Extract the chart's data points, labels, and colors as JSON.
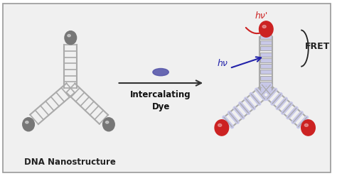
{
  "bg_color": "#f0f0f0",
  "border_color": "#999999",
  "ladder_color": "#aaaaaa",
  "ladder_filled_color": "#c8c8e8",
  "dye_oval_color": "#5555aa",
  "gray_ball_color": "#777777",
  "red_ball_color": "#cc2222",
  "arrow_color": "#333333",
  "hv_color": "#2222aa",
  "hvp_color": "#cc2222",
  "fret_color": "#222222",
  "label_dna": "DNA Nanostructure",
  "label_intercalating": "Intercalating",
  "label_dye": "Dye",
  "label_fret": "FRET",
  "label_hv": "hν",
  "label_hvp": "hν'",
  "figsize": [
    4.74,
    2.48
  ],
  "dpi": 100
}
